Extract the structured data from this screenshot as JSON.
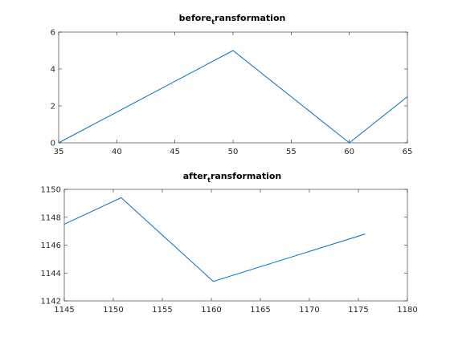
{
  "colors": {
    "line": "#0072bd",
    "axis": "#262626",
    "background": "#ffffff"
  },
  "chart_data": [
    {
      "type": "line",
      "title": {
        "main": "before",
        "sub": "t",
        "rest": "ransformation"
      },
      "xlabel": "",
      "ylabel": "",
      "xlim": [
        35,
        65
      ],
      "ylim": [
        0,
        6
      ],
      "xticks": [
        "35",
        "40",
        "45",
        "50",
        "55",
        "60",
        "65"
      ],
      "yticks": [
        "0",
        "2",
        "4",
        "6"
      ],
      "grid": false,
      "x": [
        35,
        50,
        60,
        65
      ],
      "y": [
        0,
        5,
        0,
        2.5
      ]
    },
    {
      "type": "line",
      "title": {
        "main": "after",
        "sub": "t",
        "rest": "ransformation"
      },
      "xlabel": "",
      "ylabel": "",
      "xlim": [
        1145,
        1180
      ],
      "ylim": [
        1142,
        1150
      ],
      "xticks": [
        "1145",
        "1150",
        "1155",
        "1160",
        "1165",
        "1170",
        "1175",
        "1180"
      ],
      "yticks": [
        "1142",
        "1144",
        "1146",
        "1148",
        "1150"
      ],
      "grid": false,
      "x": [
        1145,
        1150.8,
        1160.2,
        1175.7
      ],
      "y": [
        1147.5,
        1149.4,
        1143.4,
        1146.8
      ]
    }
  ]
}
